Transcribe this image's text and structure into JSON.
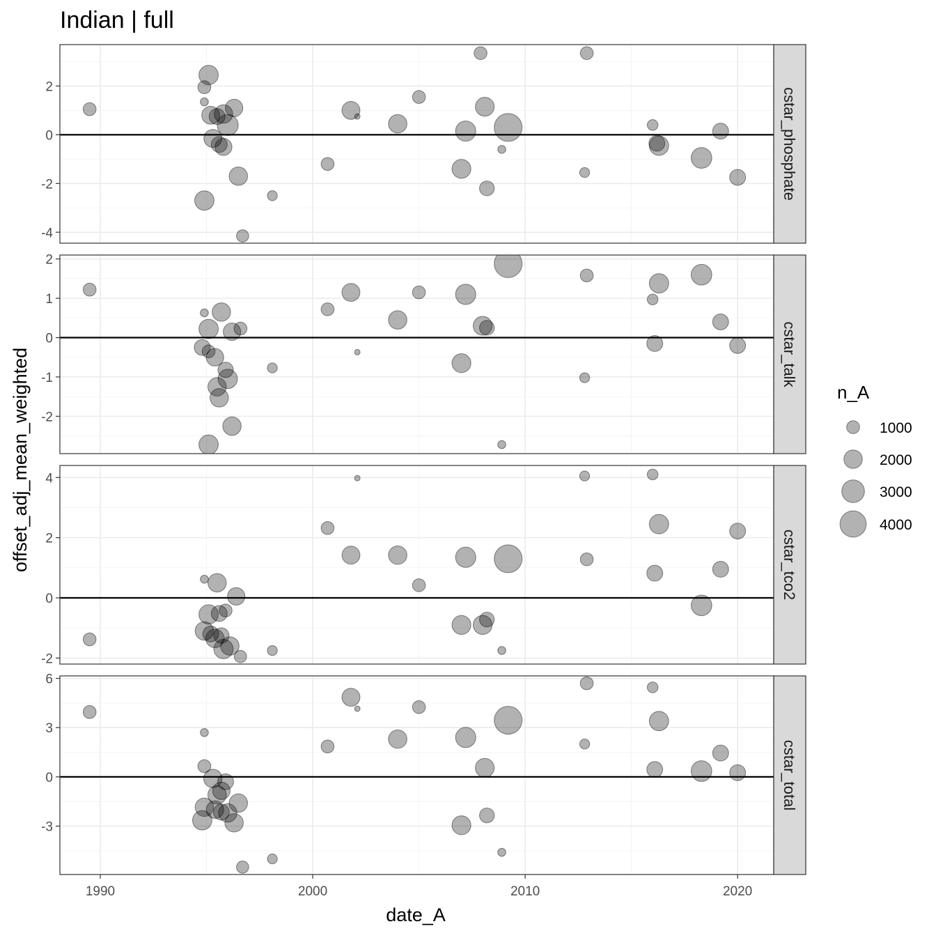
{
  "chart_data": {
    "type": "scatter",
    "title": "Indian | full",
    "xlabel": "date_A",
    "ylabel": "offset_adj_mean_weighted",
    "x_ticks": [
      1990,
      2000,
      2010,
      2020
    ],
    "xlim": [
      1988.1,
      2021.7
    ],
    "grid": true,
    "reference_line": 0,
    "legend": {
      "title": "n_A",
      "placement": "right",
      "entries": [
        {
          "label": "1000",
          "value": 1000
        },
        {
          "label": "2000",
          "value": 2000
        },
        {
          "label": "3000",
          "value": 3000
        },
        {
          "label": "4000",
          "value": 4000
        }
      ]
    },
    "size_range_n": [
      200,
      4500
    ],
    "panels": [
      {
        "name": "cstar_phosphate",
        "ylim": [
          -4.45,
          3.7
        ],
        "y_ticks": [
          -4,
          -2,
          0,
          2
        ],
        "points": [
          {
            "x": 1989.5,
            "y": 1.05,
            "n": 1000
          },
          {
            "x": 1995.1,
            "y": 2.45,
            "n": 2200
          },
          {
            "x": 1994.9,
            "y": 1.95,
            "n": 1000
          },
          {
            "x": 1994.9,
            "y": 1.35,
            "n": 400
          },
          {
            "x": 1995.2,
            "y": 0.8,
            "n": 1900
          },
          {
            "x": 1995.5,
            "y": 0.75,
            "n": 1500
          },
          {
            "x": 1995.8,
            "y": 0.85,
            "n": 2000
          },
          {
            "x": 1996.3,
            "y": 1.1,
            "n": 1800
          },
          {
            "x": 1996.0,
            "y": 0.4,
            "n": 2600
          },
          {
            "x": 1995.3,
            "y": -0.15,
            "n": 1900
          },
          {
            "x": 1995.6,
            "y": -0.4,
            "n": 1500
          },
          {
            "x": 1995.8,
            "y": -0.5,
            "n": 1700
          },
          {
            "x": 1996.5,
            "y": -1.7,
            "n": 2000
          },
          {
            "x": 1994.9,
            "y": -2.7,
            "n": 2200
          },
          {
            "x": 1998.1,
            "y": -2.5,
            "n": 600
          },
          {
            "x": 1996.7,
            "y": -4.15,
            "n": 900
          },
          {
            "x": 2001.8,
            "y": 1.0,
            "n": 1900
          },
          {
            "x": 2002.1,
            "y": 0.75,
            "n": 200
          },
          {
            "x": 2000.7,
            "y": -1.2,
            "n": 1000
          },
          {
            "x": 2004.0,
            "y": 0.45,
            "n": 2000
          },
          {
            "x": 2005.0,
            "y": 1.55,
            "n": 1000
          },
          {
            "x": 2007.9,
            "y": 3.35,
            "n": 1000
          },
          {
            "x": 2008.1,
            "y": 1.15,
            "n": 2100
          },
          {
            "x": 2007.2,
            "y": 0.15,
            "n": 2400
          },
          {
            "x": 2009.2,
            "y": 0.3,
            "n": 4500
          },
          {
            "x": 2007.0,
            "y": -1.4,
            "n": 2100
          },
          {
            "x": 2008.2,
            "y": -2.2,
            "n": 1300
          },
          {
            "x": 2008.9,
            "y": -0.6,
            "n": 400
          },
          {
            "x": 2012.9,
            "y": 3.35,
            "n": 1000
          },
          {
            "x": 2012.8,
            "y": -1.55,
            "n": 600
          },
          {
            "x": 2016.0,
            "y": 0.4,
            "n": 700
          },
          {
            "x": 2016.2,
            "y": -0.35,
            "n": 1500
          },
          {
            "x": 2016.3,
            "y": -0.45,
            "n": 2200
          },
          {
            "x": 2018.3,
            "y": -0.95,
            "n": 2500
          },
          {
            "x": 2019.2,
            "y": 0.15,
            "n": 1500
          },
          {
            "x": 2020.0,
            "y": -1.75,
            "n": 1500
          }
        ]
      },
      {
        "name": "cstar_talk",
        "ylim": [
          -2.95,
          2.1
        ],
        "y_ticks": [
          -2,
          -1,
          0,
          1,
          2
        ],
        "points": [
          {
            "x": 1989.5,
            "y": 1.22,
            "n": 1000
          },
          {
            "x": 1994.9,
            "y": 0.63,
            "n": 400
          },
          {
            "x": 1995.7,
            "y": 0.65,
            "n": 2000
          },
          {
            "x": 1995.1,
            "y": 0.22,
            "n": 2200
          },
          {
            "x": 1996.2,
            "y": 0.15,
            "n": 1800
          },
          {
            "x": 1996.6,
            "y": 0.23,
            "n": 1000
          },
          {
            "x": 1994.8,
            "y": -0.25,
            "n": 1500
          },
          {
            "x": 1995.1,
            "y": -0.35,
            "n": 1000
          },
          {
            "x": 1995.4,
            "y": -0.5,
            "n": 1800
          },
          {
            "x": 1995.9,
            "y": -0.82,
            "n": 1400
          },
          {
            "x": 1995.5,
            "y": -1.25,
            "n": 2000
          },
          {
            "x": 1996.0,
            "y": -1.05,
            "n": 2200
          },
          {
            "x": 1995.6,
            "y": -1.53,
            "n": 2000
          },
          {
            "x": 1996.2,
            "y": -2.25,
            "n": 2000
          },
          {
            "x": 1995.1,
            "y": -2.72,
            "n": 2200
          },
          {
            "x": 1998.1,
            "y": -0.77,
            "n": 600
          },
          {
            "x": 2000.7,
            "y": 0.72,
            "n": 1000
          },
          {
            "x": 2001.8,
            "y": 1.15,
            "n": 1900
          },
          {
            "x": 2002.1,
            "y": -0.37,
            "n": 200
          },
          {
            "x": 2004.0,
            "y": 0.45,
            "n": 2000
          },
          {
            "x": 2005.0,
            "y": 1.15,
            "n": 1000
          },
          {
            "x": 2007.2,
            "y": 1.1,
            "n": 2400
          },
          {
            "x": 2007.0,
            "y": -0.65,
            "n": 2100
          },
          {
            "x": 2008.0,
            "y": 0.3,
            "n": 2100
          },
          {
            "x": 2008.2,
            "y": 0.25,
            "n": 1300
          },
          {
            "x": 2009.2,
            "y": 1.88,
            "n": 4500
          },
          {
            "x": 2008.9,
            "y": -2.72,
            "n": 400
          },
          {
            "x": 2012.9,
            "y": 1.58,
            "n": 1000
          },
          {
            "x": 2012.8,
            "y": -1.02,
            "n": 600
          },
          {
            "x": 2016.0,
            "y": 0.97,
            "n": 700
          },
          {
            "x": 2016.3,
            "y": 1.38,
            "n": 2200
          },
          {
            "x": 2016.1,
            "y": -0.15,
            "n": 1500
          },
          {
            "x": 2018.3,
            "y": 1.6,
            "n": 2500
          },
          {
            "x": 2019.2,
            "y": 0.4,
            "n": 1500
          },
          {
            "x": 2020.0,
            "y": -0.2,
            "n": 1500
          }
        ]
      },
      {
        "name": "cstar_tco2",
        "ylim": [
          -2.2,
          4.4
        ],
        "y_ticks": [
          -2,
          0,
          2,
          4
        ],
        "points": [
          {
            "x": 1989.5,
            "y": -1.38,
            "n": 1000
          },
          {
            "x": 1994.9,
            "y": 0.62,
            "n": 400
          },
          {
            "x": 1995.5,
            "y": 0.5,
            "n": 2000
          },
          {
            "x": 1996.4,
            "y": 0.05,
            "n": 1800
          },
          {
            "x": 1995.1,
            "y": -0.55,
            "n": 2200
          },
          {
            "x": 1995.9,
            "y": -0.42,
            "n": 1000
          },
          {
            "x": 1995.6,
            "y": -0.52,
            "n": 1500
          },
          {
            "x": 1994.9,
            "y": -1.1,
            "n": 2000
          },
          {
            "x": 1995.2,
            "y": -1.2,
            "n": 1500
          },
          {
            "x": 1995.4,
            "y": -1.35,
            "n": 2000
          },
          {
            "x": 1995.7,
            "y": -1.25,
            "n": 1400
          },
          {
            "x": 1995.8,
            "y": -1.7,
            "n": 2200
          },
          {
            "x": 1996.1,
            "y": -1.6,
            "n": 2000
          },
          {
            "x": 1996.6,
            "y": -1.95,
            "n": 900
          },
          {
            "x": 1998.1,
            "y": -1.75,
            "n": 600
          },
          {
            "x": 2000.7,
            "y": 2.32,
            "n": 1000
          },
          {
            "x": 2001.8,
            "y": 1.42,
            "n": 1900
          },
          {
            "x": 2002.1,
            "y": 3.98,
            "n": 200
          },
          {
            "x": 2004.0,
            "y": 1.42,
            "n": 2000
          },
          {
            "x": 2005.0,
            "y": 0.42,
            "n": 1000
          },
          {
            "x": 2007.2,
            "y": 1.35,
            "n": 2400
          },
          {
            "x": 2007.0,
            "y": -0.9,
            "n": 2100
          },
          {
            "x": 2008.2,
            "y": -0.72,
            "n": 1300
          },
          {
            "x": 2008.0,
            "y": -0.9,
            "n": 2100
          },
          {
            "x": 2009.2,
            "y": 1.3,
            "n": 4500
          },
          {
            "x": 2008.9,
            "y": -1.75,
            "n": 400
          },
          {
            "x": 2012.8,
            "y": 4.05,
            "n": 600
          },
          {
            "x": 2012.9,
            "y": 1.28,
            "n": 1000
          },
          {
            "x": 2016.0,
            "y": 4.1,
            "n": 700
          },
          {
            "x": 2016.3,
            "y": 2.45,
            "n": 2200
          },
          {
            "x": 2016.1,
            "y": 0.82,
            "n": 1500
          },
          {
            "x": 2018.3,
            "y": -0.25,
            "n": 2500
          },
          {
            "x": 2019.2,
            "y": 0.95,
            "n": 1500
          },
          {
            "x": 2020.0,
            "y": 2.22,
            "n": 1500
          }
        ]
      },
      {
        "name": "cstar_total",
        "ylim": [
          -5.95,
          6.15
        ],
        "y_ticks": [
          -3,
          0,
          3,
          6
        ],
        "points": [
          {
            "x": 1989.5,
            "y": 3.95,
            "n": 1000
          },
          {
            "x": 1994.9,
            "y": 2.7,
            "n": 400
          },
          {
            "x": 1994.9,
            "y": 0.65,
            "n": 1000
          },
          {
            "x": 1995.3,
            "y": -0.1,
            "n": 2000
          },
          {
            "x": 1995.9,
            "y": -0.3,
            "n": 1500
          },
          {
            "x": 1995.7,
            "y": -0.85,
            "n": 1800
          },
          {
            "x": 1995.5,
            "y": -1.1,
            "n": 2000
          },
          {
            "x": 1994.9,
            "y": -1.85,
            "n": 2000
          },
          {
            "x": 1995.4,
            "y": -2.0,
            "n": 1800
          },
          {
            "x": 1995.7,
            "y": -2.15,
            "n": 1500
          },
          {
            "x": 1996.0,
            "y": -2.2,
            "n": 2000
          },
          {
            "x": 1996.5,
            "y": -1.6,
            "n": 2000
          },
          {
            "x": 1994.8,
            "y": -2.65,
            "n": 2200
          },
          {
            "x": 1996.3,
            "y": -2.8,
            "n": 2000
          },
          {
            "x": 1998.1,
            "y": -5.0,
            "n": 600
          },
          {
            "x": 1996.7,
            "y": -5.5,
            "n": 900
          },
          {
            "x": 2001.8,
            "y": 4.85,
            "n": 1900
          },
          {
            "x": 2002.1,
            "y": 4.15,
            "n": 200
          },
          {
            "x": 2000.7,
            "y": 1.85,
            "n": 1000
          },
          {
            "x": 2004.0,
            "y": 2.3,
            "n": 2000
          },
          {
            "x": 2005.0,
            "y": 4.25,
            "n": 1000
          },
          {
            "x": 2007.2,
            "y": 2.4,
            "n": 2400
          },
          {
            "x": 2008.1,
            "y": 0.55,
            "n": 2100
          },
          {
            "x": 2007.0,
            "y": -2.95,
            "n": 2100
          },
          {
            "x": 2008.2,
            "y": -2.35,
            "n": 1300
          },
          {
            "x": 2009.2,
            "y": 3.45,
            "n": 4500
          },
          {
            "x": 2008.9,
            "y": -4.6,
            "n": 400
          },
          {
            "x": 2012.9,
            "y": 5.7,
            "n": 1000
          },
          {
            "x": 2012.8,
            "y": 2.0,
            "n": 600
          },
          {
            "x": 2016.0,
            "y": 5.45,
            "n": 700
          },
          {
            "x": 2016.3,
            "y": 3.4,
            "n": 2200
          },
          {
            "x": 2016.1,
            "y": 0.45,
            "n": 1500
          },
          {
            "x": 2018.3,
            "y": 0.35,
            "n": 2500
          },
          {
            "x": 2019.2,
            "y": 1.45,
            "n": 1500
          },
          {
            "x": 2020.0,
            "y": 0.25,
            "n": 1500
          }
        ]
      }
    ]
  }
}
